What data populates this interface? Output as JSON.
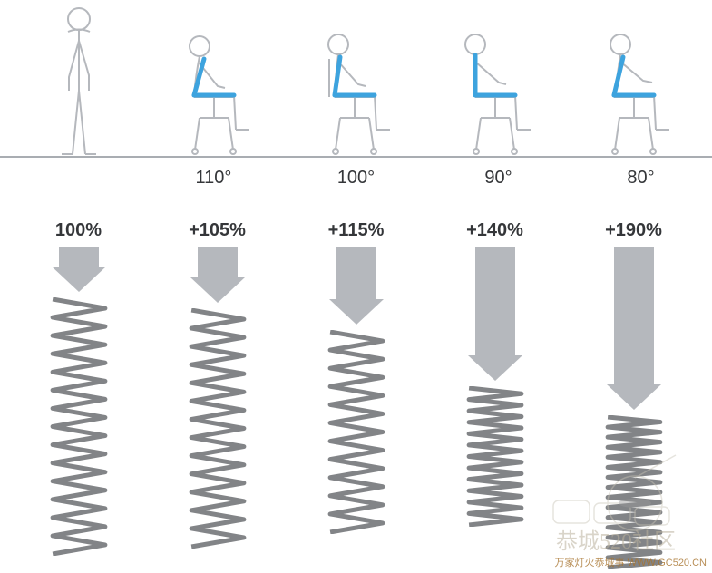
{
  "colors": {
    "stroke": "#b5b8bd",
    "highlight": "#3da3de",
    "text": "#343639",
    "arrow": "#b5b8bd",
    "spring": "#828487",
    "baseline": "#a9adb2",
    "bg": "#ffffff"
  },
  "typography": {
    "angle_fontsize": 20,
    "pct_fontsize": 20,
    "pct_weight": 600
  },
  "postures": [
    {
      "id": "stand",
      "angle": "",
      "pct": "100%",
      "arrow_h": 22,
      "arrow_w": 44,
      "spring_h": 285,
      "spring_coils": 14,
      "back_angle": 0
    },
    {
      "id": "sit110",
      "angle": "110°",
      "pct": "+105%",
      "arrow_h": 34,
      "arrow_w": 44,
      "spring_h": 265,
      "spring_coils": 13,
      "back_angle": 110
    },
    {
      "id": "sit100",
      "angle": "100°",
      "pct": "+115%",
      "arrow_h": 58,
      "arrow_w": 44,
      "spring_h": 225,
      "spring_coils": 11,
      "back_angle": 100
    },
    {
      "id": "sit90",
      "angle": "90°",
      "pct": "+140%",
      "arrow_h": 120,
      "arrow_w": 44,
      "spring_h": 155,
      "spring_coils": 12,
      "back_angle": 90
    },
    {
      "id": "sit80",
      "angle": "80°",
      "pct": "+190%",
      "arrow_h": 152,
      "arrow_w": 44,
      "spring_h": 170,
      "spring_coils": 15,
      "back_angle": 80
    }
  ],
  "spring_style": {
    "width": 76,
    "stroke_width": 5,
    "stroke": "#828487"
  },
  "arrow_style": {
    "head_w": 60,
    "head_h": 28,
    "fill": "#b5b8bd"
  },
  "watermark": {
    "logo_text": "恭城520社区",
    "url_text": "万家灯火恭城事 WWW.GC520.CN"
  }
}
